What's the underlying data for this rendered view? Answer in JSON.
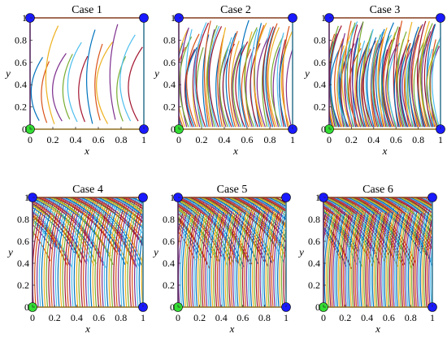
{
  "chart_data": [
    {
      "type": "line",
      "title": "Case 1",
      "xlabel": "x",
      "ylabel": "y",
      "xlim": [
        0,
        1
      ],
      "ylim": [
        0,
        1
      ],
      "xticks": [
        "0",
        "0.2",
        "0.4",
        "0.6",
        "0.8",
        "1"
      ],
      "yticks": [
        "0",
        "0.2",
        "0.4",
        "0.6",
        "0.8",
        "1"
      ],
      "density": 14,
      "pattern": "sparse-arcs",
      "corner_markers": [
        {
          "x": 0,
          "y": 0,
          "color": "#33dd33"
        },
        {
          "x": 0,
          "y": 1,
          "color": "#1a1aff"
        },
        {
          "x": 1,
          "y": 1,
          "color": "#1a1aff"
        },
        {
          "x": 1,
          "y": 0,
          "color": "#1a1aff"
        }
      ]
    },
    {
      "type": "line",
      "title": "Case 2",
      "xlabel": "x",
      "ylabel": "y",
      "xlim": [
        0,
        1
      ],
      "ylim": [
        0,
        1
      ],
      "xticks": [
        "0",
        "0.2",
        "0.4",
        "0.6",
        "0.8",
        "1"
      ],
      "yticks": [
        "0",
        "0.2",
        "0.4",
        "0.6",
        "0.8",
        "1"
      ],
      "density": 60,
      "pattern": "dense-arcs",
      "corner_markers": [
        {
          "x": 0,
          "y": 0,
          "color": "#33dd33"
        },
        {
          "x": 0,
          "y": 1,
          "color": "#1a1aff"
        },
        {
          "x": 1,
          "y": 1,
          "color": "#1a1aff"
        },
        {
          "x": 1,
          "y": 0,
          "color": "#1a1aff"
        }
      ]
    },
    {
      "type": "line",
      "title": "Case 3",
      "xlabel": "x",
      "ylabel": "y",
      "xlim": [
        0,
        1
      ],
      "ylim": [
        0,
        1
      ],
      "xticks": [
        "0",
        "0.2",
        "0.4",
        "0.6",
        "0.8",
        "1"
      ],
      "yticks": [
        "0",
        "0.2",
        "0.4",
        "0.6",
        "0.8",
        "1"
      ],
      "density": 90,
      "pattern": "dense-arcs",
      "corner_markers": [
        {
          "x": 0,
          "y": 0,
          "color": "#33dd33"
        },
        {
          "x": 0,
          "y": 1,
          "color": "#1a1aff"
        },
        {
          "x": 1,
          "y": 1,
          "color": "#1a1aff"
        },
        {
          "x": 1,
          "y": 0,
          "color": "#1a1aff"
        }
      ]
    },
    {
      "type": "line",
      "title": "Case 4",
      "xlabel": "x",
      "ylabel": "y",
      "xlim": [
        0,
        1
      ],
      "ylim": [
        0,
        1
      ],
      "xticks": [
        "0",
        "0.2",
        "0.4",
        "0.6",
        "0.8",
        "1"
      ],
      "yticks": [
        "0",
        "0.2",
        "0.4",
        "0.6",
        "0.8",
        "1"
      ],
      "density": 120,
      "pattern": "crossing-arcs",
      "corner_markers": [
        {
          "x": 0,
          "y": 0,
          "color": "#33dd33"
        },
        {
          "x": 0,
          "y": 1,
          "color": "#1a1aff"
        },
        {
          "x": 1,
          "y": 1,
          "color": "#1a1aff"
        },
        {
          "x": 1,
          "y": 0,
          "color": "#1a1aff"
        }
      ]
    },
    {
      "type": "line",
      "title": "Case 5",
      "xlabel": "x",
      "ylabel": "y",
      "xlim": [
        0,
        1
      ],
      "ylim": [
        0,
        1
      ],
      "xticks": [
        "0",
        "0.2",
        "0.4",
        "0.6",
        "0.8",
        "1"
      ],
      "yticks": [
        "0",
        "0.2",
        "0.4",
        "0.6",
        "0.8",
        "1"
      ],
      "density": 140,
      "pattern": "crossing-arcs",
      "corner_markers": [
        {
          "x": 0,
          "y": 0,
          "color": "#33dd33"
        },
        {
          "x": 0,
          "y": 1,
          "color": "#1a1aff"
        },
        {
          "x": 1,
          "y": 1,
          "color": "#1a1aff"
        },
        {
          "x": 1,
          "y": 0,
          "color": "#1a1aff"
        }
      ]
    },
    {
      "type": "line",
      "title": "Case 6",
      "xlabel": "x",
      "ylabel": "y",
      "xlim": [
        0,
        1
      ],
      "ylim": [
        0,
        1
      ],
      "xticks": [
        "0",
        "0.2",
        "0.4",
        "0.6",
        "0.8",
        "1"
      ],
      "yticks": [
        "0",
        "0.2",
        "0.4",
        "0.6",
        "0.8",
        "1"
      ],
      "density": 160,
      "pattern": "crossing-arcs",
      "corner_markers": [
        {
          "x": 0,
          "y": 0,
          "color": "#33dd33"
        },
        {
          "x": 0,
          "y": 1,
          "color": "#1a1aff"
        },
        {
          "x": 1,
          "y": 1,
          "color": "#1a1aff"
        },
        {
          "x": 1,
          "y": 0,
          "color": "#1a1aff"
        }
      ]
    }
  ],
  "palette": [
    "#0072bd",
    "#d95319",
    "#edb120",
    "#7e2f8e",
    "#77ac30",
    "#4dbeee",
    "#a2142f"
  ]
}
